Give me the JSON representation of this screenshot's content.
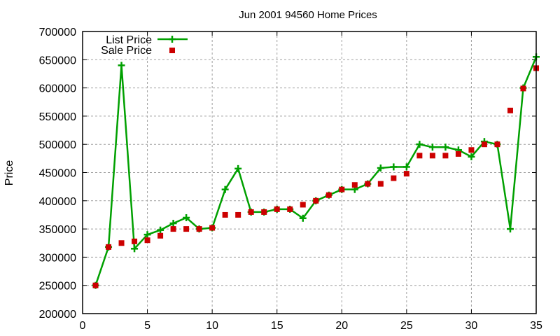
{
  "chart_data": {
    "type": "line",
    "title": "Jun 2001 94560 Home Prices",
    "xlabel": "",
    "ylabel": "Price",
    "xlim": [
      0,
      35
    ],
    "ylim": [
      200000,
      700000
    ],
    "x_ticks": [
      0,
      5,
      10,
      15,
      20,
      25,
      30,
      35
    ],
    "y_ticks": [
      200000,
      250000,
      300000,
      350000,
      400000,
      450000,
      500000,
      550000,
      600000,
      650000,
      700000
    ],
    "grid": true,
    "legend_position": "top-left",
    "x": [
      1,
      2,
      3,
      4,
      5,
      6,
      7,
      8,
      9,
      10,
      11,
      12,
      13,
      14,
      15,
      16,
      17,
      18,
      19,
      20,
      21,
      22,
      23,
      24,
      25,
      26,
      27,
      28,
      29,
      30,
      31,
      32,
      33,
      34,
      35
    ],
    "series": [
      {
        "name": "List Price",
        "style": "linespoints",
        "marker": "plus",
        "color": "#00a000",
        "values": [
          250000,
          318000,
          640000,
          315000,
          340000,
          348000,
          360000,
          370000,
          350000,
          352000,
          420000,
          457000,
          380000,
          380000,
          385000,
          385000,
          369000,
          400000,
          410000,
          420000,
          420000,
          430000,
          458000,
          460000,
          460000,
          500000,
          495000,
          495000,
          490000,
          478000,
          505000,
          500000,
          350000,
          600000,
          655000
        ]
      },
      {
        "name": "Sale Price",
        "style": "points",
        "marker": "square",
        "color": "#cc0000",
        "values": [
          250000,
          318000,
          325000,
          328000,
          330000,
          338000,
          350000,
          350000,
          350000,
          352000,
          375000,
          375000,
          380000,
          380000,
          385000,
          385000,
          393000,
          400000,
          410000,
          420000,
          428000,
          430000,
          430000,
          440000,
          448000,
          480000,
          480000,
          480000,
          483000,
          490000,
          500000,
          500000,
          560000,
          599000,
          635000
        ]
      }
    ]
  }
}
